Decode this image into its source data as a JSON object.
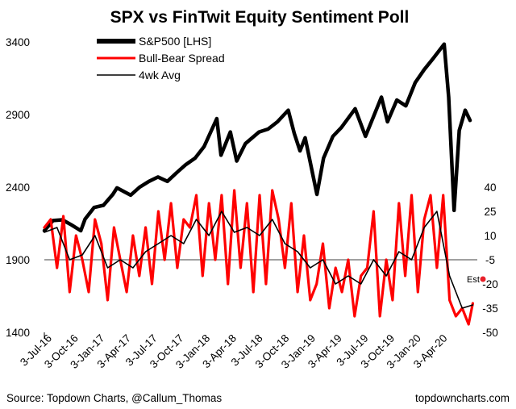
{
  "chart_data": {
    "type": "line",
    "title": "SPX vs FinTwit Equity Sentiment Poll",
    "x_tick_labels": [
      "3-Jul-16",
      "3-Oct-16",
      "3-Jan-17",
      "3-Apr-17",
      "3-Jul-17",
      "3-Oct-17",
      "3-Jan-18",
      "3-Apr-18",
      "3-Jul-18",
      "3-Oct-18",
      "3-Jan-19",
      "3-Apr-19",
      "3-Jul-19",
      "3-Oct-19",
      "3-Jan-20",
      "3-Apr-20"
    ],
    "left_axis": {
      "ticks": [
        "3400",
        "2900",
        "2400",
        "1900",
        "1400"
      ],
      "ylim": [
        1400,
        3400
      ]
    },
    "right_axis": {
      "ticks": [
        "40",
        "25",
        "10",
        "-5",
        "-20",
        "-35",
        "-50"
      ],
      "ylim": [
        -50,
        40
      ]
    },
    "reference_line": {
      "axis": "right",
      "value": -5,
      "color": "#808080"
    },
    "legend": {
      "position": "top-left",
      "entries": [
        {
          "label": "S&P500 [LHS]",
          "color": "#000000"
        },
        {
          "label": "Bull-Bear Spread",
          "color": "#ff0000"
        },
        {
          "label": "4wk Avg",
          "color": "#000000"
        }
      ]
    },
    "annotation": {
      "text": "Est",
      "value": -17,
      "color": "#e8202a"
    },
    "series": [
      {
        "name": "S&P500 [LHS]",
        "axis": "left",
        "color": "#000000",
        "x": [
          "2016-07-03",
          "2016-08-01",
          "2016-09-01",
          "2016-10-01",
          "2016-11-01",
          "2016-11-15",
          "2016-12-15",
          "2017-01-15",
          "2017-02-15",
          "2017-03-01",
          "2017-04-15",
          "2017-05-15",
          "2017-06-15",
          "2017-07-15",
          "2017-08-15",
          "2017-09-15",
          "2017-10-15",
          "2017-11-15",
          "2017-12-15",
          "2018-01-26",
          "2018-02-09",
          "2018-03-12",
          "2018-04-02",
          "2018-05-01",
          "2018-06-15",
          "2018-07-15",
          "2018-08-15",
          "2018-09-20",
          "2018-10-10",
          "2018-10-29",
          "2018-11-15",
          "2018-12-24",
          "2019-01-15",
          "2019-02-15",
          "2019-03-15",
          "2019-04-30",
          "2019-06-03",
          "2019-07-26",
          "2019-08-15",
          "2019-09-15",
          "2019-10-15",
          "2019-11-15",
          "2019-12-15",
          "2020-01-15",
          "2020-02-19",
          "2020-03-05",
          "2020-03-23",
          "2020-04-09",
          "2020-04-29",
          "2020-05-15"
        ],
        "values": [
          2100,
          2170,
          2175,
          2140,
          2100,
          2180,
          2260,
          2275,
          2350,
          2395,
          2345,
          2400,
          2440,
          2470,
          2440,
          2500,
          2555,
          2600,
          2680,
          2872,
          2620,
          2780,
          2580,
          2700,
          2780,
          2800,
          2850,
          2930,
          2770,
          2650,
          2740,
          2350,
          2600,
          2750,
          2810,
          2940,
          2750,
          3020,
          2850,
          3000,
          2960,
          3120,
          3210,
          3290,
          3385,
          3020,
          2240,
          2790,
          2930,
          2860
        ]
      },
      {
        "name": "Bull-Bear Spread",
        "axis": "right",
        "color": "#ff0000",
        "x": [
          "2016-07-03",
          "2016-07-24",
          "2016-08-14",
          "2016-09-04",
          "2016-09-25",
          "2016-10-16",
          "2016-11-06",
          "2016-11-27",
          "2016-12-18",
          "2017-01-08",
          "2017-01-29",
          "2017-02-19",
          "2017-03-12",
          "2017-04-02",
          "2017-04-23",
          "2017-05-14",
          "2017-06-04",
          "2017-06-25",
          "2017-07-16",
          "2017-08-06",
          "2017-08-27",
          "2017-09-17",
          "2017-10-08",
          "2017-10-29",
          "2017-11-19",
          "2017-12-10",
          "2017-12-31",
          "2018-01-21",
          "2018-02-11",
          "2018-03-04",
          "2018-03-25",
          "2018-04-15",
          "2018-05-06",
          "2018-05-27",
          "2018-06-17",
          "2018-07-08",
          "2018-07-29",
          "2018-08-19",
          "2018-09-09",
          "2018-09-30",
          "2018-10-21",
          "2018-11-11",
          "2018-12-02",
          "2018-12-23",
          "2019-01-13",
          "2019-02-03",
          "2019-02-24",
          "2019-03-17",
          "2019-04-07",
          "2019-04-28",
          "2019-05-19",
          "2019-06-09",
          "2019-06-30",
          "2019-07-21",
          "2019-08-11",
          "2019-09-01",
          "2019-09-22",
          "2019-10-13",
          "2019-11-03",
          "2019-11-24",
          "2019-12-15",
          "2020-01-05",
          "2020-01-26",
          "2020-02-16",
          "2020-03-08",
          "2020-03-29",
          "2020-04-19",
          "2020-05-10",
          "2020-05-24"
        ],
        "values": [
          15,
          20,
          -10,
          22,
          -25,
          10,
          -5,
          -25,
          20,
          5,
          -30,
          15,
          -5,
          -25,
          10,
          -15,
          15,
          -20,
          25,
          -5,
          30,
          -10,
          20,
          15,
          35,
          -15,
          30,
          -5,
          35,
          -20,
          38,
          -10,
          30,
          -25,
          35,
          -20,
          38,
          20,
          -10,
          30,
          -25,
          10,
          -30,
          -20,
          5,
          -35,
          -10,
          -25,
          -5,
          -40,
          -15,
          -10,
          25,
          -40,
          -5,
          -30,
          30,
          -15,
          35,
          -25,
          20,
          35,
          -10,
          35,
          -30,
          -40,
          -35,
          -45,
          -32
        ]
      },
      {
        "name": "4wk Avg",
        "axis": "right",
        "color": "#000000",
        "x": [
          "2016-07-03",
          "2016-08-14",
          "2016-09-25",
          "2016-11-06",
          "2016-12-18",
          "2017-01-29",
          "2017-03-12",
          "2017-04-23",
          "2017-06-04",
          "2017-07-16",
          "2017-08-27",
          "2017-10-08",
          "2017-11-19",
          "2017-12-31",
          "2018-02-11",
          "2018-03-25",
          "2018-05-06",
          "2018-06-17",
          "2018-07-29",
          "2018-09-09",
          "2018-10-21",
          "2018-12-02",
          "2019-01-13",
          "2019-02-24",
          "2019-04-07",
          "2019-05-19",
          "2019-06-30",
          "2019-08-11",
          "2019-09-22",
          "2019-11-03",
          "2019-12-15",
          "2020-01-26",
          "2020-03-08",
          "2020-04-19",
          "2020-05-24"
        ],
        "values": [
          12,
          15,
          -5,
          -2,
          10,
          -10,
          -5,
          -10,
          0,
          5,
          10,
          5,
          20,
          10,
          25,
          12,
          15,
          10,
          20,
          5,
          0,
          -10,
          -5,
          -20,
          -15,
          -20,
          -5,
          -15,
          0,
          -5,
          15,
          25,
          -15,
          -35,
          -33
        ]
      }
    ]
  },
  "source_text": "Source: Topdown Charts, @Callum_Thomas",
  "brand_text": "topdowncharts.com"
}
